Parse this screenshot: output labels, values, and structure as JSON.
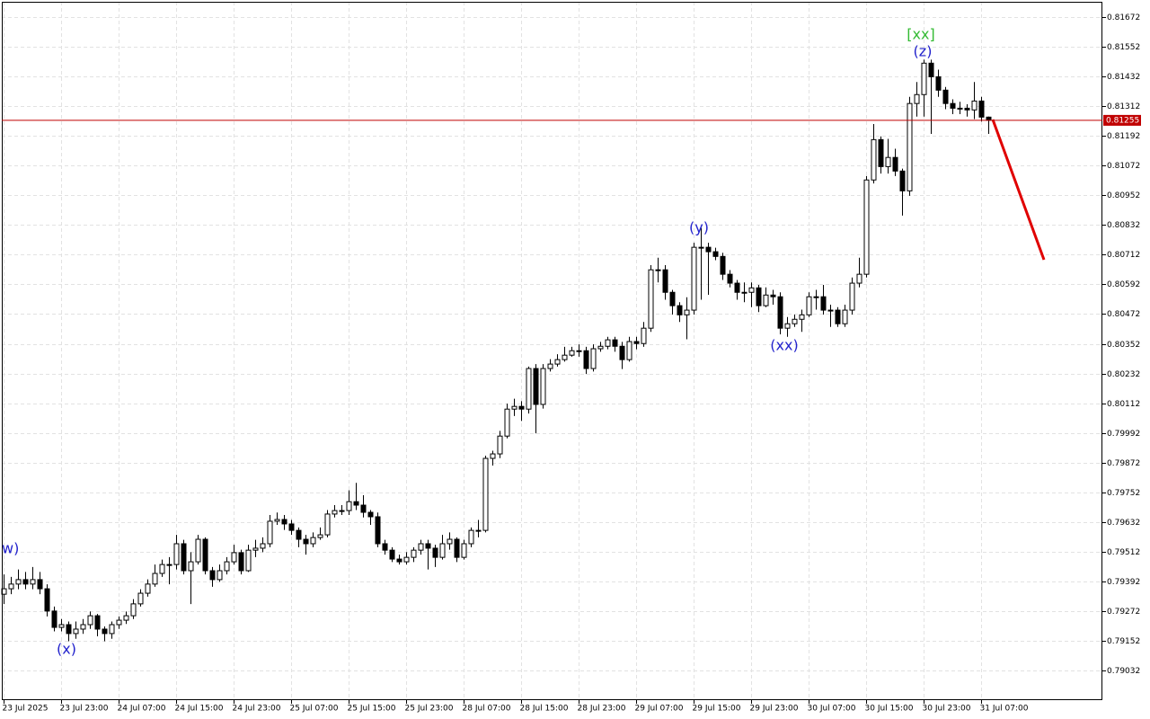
{
  "chart_data": {
    "type": "candlestick",
    "ohlc": [
      [
        0.7934,
        0.7942,
        0.793,
        0.79362
      ],
      [
        0.79362,
        0.7941,
        0.7934,
        0.79381
      ],
      [
        0.79381,
        0.7944,
        0.7936,
        0.79399
      ],
      [
        0.79399,
        0.7943,
        0.7936,
        0.79381
      ],
      [
        0.79381,
        0.7945,
        0.7936,
        0.79399
      ],
      [
        0.79399,
        0.7943,
        0.7934,
        0.79362
      ],
      [
        0.79362,
        0.7938,
        0.7925,
        0.79272
      ],
      [
        0.79272,
        0.7929,
        0.7919,
        0.79206
      ],
      [
        0.79206,
        0.7924,
        0.7919,
        0.79217
      ],
      [
        0.79217,
        0.7923,
        0.7915,
        0.79181
      ],
      [
        0.79181,
        0.7923,
        0.7916,
        0.79199
      ],
      [
        0.79199,
        0.7924,
        0.7918,
        0.79217
      ],
      [
        0.79217,
        0.7927,
        0.792,
        0.79253
      ],
      [
        0.79253,
        0.7926,
        0.7917,
        0.79199
      ],
      [
        0.79199,
        0.7921,
        0.7915,
        0.79181
      ],
      [
        0.79181,
        0.7923,
        0.7916,
        0.79217
      ],
      [
        0.79217,
        0.7925,
        0.792,
        0.79235
      ],
      [
        0.79235,
        0.7927,
        0.7922,
        0.79253
      ],
      [
        0.79253,
        0.7932,
        0.7924,
        0.79301
      ],
      [
        0.79301,
        0.7936,
        0.7929,
        0.79344
      ],
      [
        0.79344,
        0.794,
        0.7933,
        0.79381
      ],
      [
        0.79381,
        0.7946,
        0.7937,
        0.79424
      ],
      [
        0.79424,
        0.7948,
        0.7941,
        0.7946
      ],
      [
        0.7946,
        0.7949,
        0.7938,
        0.7946
      ],
      [
        0.7946,
        0.7958,
        0.7944,
        0.79544
      ],
      [
        0.79544,
        0.7956,
        0.7942,
        0.79435
      ],
      [
        0.79435,
        0.7951,
        0.793,
        0.79471
      ],
      [
        0.79471,
        0.7958,
        0.7946,
        0.79562
      ],
      [
        0.79562,
        0.7957,
        0.7942,
        0.79435
      ],
      [
        0.79435,
        0.7945,
        0.7937,
        0.79399
      ],
      [
        0.79399,
        0.7946,
        0.7939,
        0.79435
      ],
      [
        0.79435,
        0.7949,
        0.7942,
        0.79471
      ],
      [
        0.79471,
        0.7954,
        0.7946,
        0.79508
      ],
      [
        0.79508,
        0.7952,
        0.7942,
        0.79435
      ],
      [
        0.79435,
        0.7954,
        0.7943,
        0.79518
      ],
      [
        0.79518,
        0.7956,
        0.7949,
        0.79526
      ],
      [
        0.79526,
        0.7957,
        0.7951,
        0.79544
      ],
      [
        0.79544,
        0.7966,
        0.7953,
        0.79635
      ],
      [
        0.79635,
        0.7967,
        0.7962,
        0.79642
      ],
      [
        0.79642,
        0.7966,
        0.796,
        0.79624
      ],
      [
        0.79624,
        0.7964,
        0.7958,
        0.79598
      ],
      [
        0.79598,
        0.7961,
        0.7953,
        0.79562
      ],
      [
        0.79562,
        0.7958,
        0.795,
        0.79544
      ],
      [
        0.79544,
        0.7959,
        0.7953,
        0.79569
      ],
      [
        0.79569,
        0.7961,
        0.7956,
        0.7958
      ],
      [
        0.7958,
        0.7968,
        0.7957,
        0.79664
      ],
      [
        0.79664,
        0.797,
        0.7965,
        0.79678
      ],
      [
        0.79678,
        0.797,
        0.7966,
        0.79678
      ],
      [
        0.79678,
        0.7976,
        0.7966,
        0.79714
      ],
      [
        0.79714,
        0.7979,
        0.7968,
        0.797
      ],
      [
        0.797,
        0.7974,
        0.7965,
        0.79671
      ],
      [
        0.79671,
        0.7968,
        0.7962,
        0.79653
      ],
      [
        0.79653,
        0.7967,
        0.7953,
        0.79544
      ],
      [
        0.79544,
        0.7956,
        0.795,
        0.79518
      ],
      [
        0.79518,
        0.7953,
        0.7947,
        0.79482
      ],
      [
        0.79482,
        0.795,
        0.7946,
        0.79471
      ],
      [
        0.79471,
        0.7951,
        0.7946,
        0.79489
      ],
      [
        0.79489,
        0.7953,
        0.7947,
        0.79518
      ],
      [
        0.79518,
        0.7956,
        0.795,
        0.79544
      ],
      [
        0.79544,
        0.7956,
        0.7944,
        0.79526
      ],
      [
        0.79526,
        0.7954,
        0.7945,
        0.79489
      ],
      [
        0.79489,
        0.7958,
        0.7948,
        0.79544
      ],
      [
        0.79544,
        0.7959,
        0.7952,
        0.79562
      ],
      [
        0.79562,
        0.7957,
        0.7947,
        0.79489
      ],
      [
        0.79489,
        0.7956,
        0.7948,
        0.79544
      ],
      [
        0.79544,
        0.7961,
        0.7953,
        0.79598
      ],
      [
        0.79598,
        0.7964,
        0.7957,
        0.79598
      ],
      [
        0.79598,
        0.799,
        0.7959,
        0.79889
      ],
      [
        0.79889,
        0.7992,
        0.7986,
        0.79907
      ],
      [
        0.79907,
        0.8,
        0.7989,
        0.79979
      ],
      [
        0.79979,
        0.8011,
        0.7997,
        0.80088
      ],
      [
        0.80088,
        0.8013,
        0.8006,
        0.80099
      ],
      [
        0.80099,
        0.8012,
        0.8004,
        0.80088
      ],
      [
        0.80088,
        0.8026,
        0.8007,
        0.80252
      ],
      [
        0.80252,
        0.8027,
        0.7999,
        0.80107
      ],
      [
        0.80107,
        0.8027,
        0.8009,
        0.80252
      ],
      [
        0.80252,
        0.8029,
        0.8024,
        0.8027
      ],
      [
        0.8027,
        0.8031,
        0.8026,
        0.80288
      ],
      [
        0.80288,
        0.8034,
        0.8028,
        0.80306
      ],
      [
        0.80306,
        0.8034,
        0.803,
        0.80324
      ],
      [
        0.80324,
        0.8035,
        0.803,
        0.80324
      ],
      [
        0.80324,
        0.8034,
        0.8023,
        0.80252
      ],
      [
        0.80252,
        0.8035,
        0.8024,
        0.80332
      ],
      [
        0.80332,
        0.8036,
        0.8032,
        0.80342
      ],
      [
        0.80342,
        0.8038,
        0.8033,
        0.80368
      ],
      [
        0.80368,
        0.8038,
        0.8032,
        0.80342
      ],
      [
        0.80342,
        0.8036,
        0.8025,
        0.80288
      ],
      [
        0.80288,
        0.8038,
        0.8028,
        0.80361
      ],
      [
        0.80361,
        0.8038,
        0.8033,
        0.80353
      ],
      [
        0.80353,
        0.8044,
        0.8034,
        0.80415
      ],
      [
        0.80415,
        0.8067,
        0.804,
        0.80651
      ],
      [
        0.80651,
        0.807,
        0.806,
        0.80651
      ],
      [
        0.80651,
        0.8067,
        0.8053,
        0.8056
      ],
      [
        0.8056,
        0.8057,
        0.8047,
        0.80506
      ],
      [
        0.80506,
        0.8052,
        0.8044,
        0.80469
      ],
      [
        0.80469,
        0.8054,
        0.8037,
        0.80488
      ],
      [
        0.80488,
        0.8076,
        0.8047,
        0.80742
      ],
      [
        0.80742,
        0.8082,
        0.8053,
        0.80742
      ],
      [
        0.80742,
        0.8076,
        0.8055,
        0.80724
      ],
      [
        0.80724,
        0.8074,
        0.8069,
        0.80705
      ],
      [
        0.80705,
        0.8072,
        0.8061,
        0.80633
      ],
      [
        0.80633,
        0.8065,
        0.8058,
        0.80597
      ],
      [
        0.80597,
        0.8061,
        0.8053,
        0.8056
      ],
      [
        0.8056,
        0.806,
        0.8052,
        0.8056
      ],
      [
        0.8056,
        0.806,
        0.805,
        0.80578
      ],
      [
        0.80578,
        0.8059,
        0.8048,
        0.80506
      ],
      [
        0.80506,
        0.8058,
        0.805,
        0.80549
      ],
      [
        0.80549,
        0.8057,
        0.8051,
        0.80542
      ],
      [
        0.80542,
        0.8056,
        0.8039,
        0.80415
      ],
      [
        0.80415,
        0.8046,
        0.8038,
        0.80433
      ],
      [
        0.80433,
        0.8047,
        0.8042,
        0.80451
      ],
      [
        0.80451,
        0.8049,
        0.804,
        0.80469
      ],
      [
        0.80469,
        0.8056,
        0.8046,
        0.80542
      ],
      [
        0.80542,
        0.8057,
        0.8049,
        0.80542
      ],
      [
        0.80542,
        0.8059,
        0.8047,
        0.80488
      ],
      [
        0.80488,
        0.8051,
        0.8042,
        0.80488
      ],
      [
        0.80488,
        0.805,
        0.8042,
        0.80433
      ],
      [
        0.80433,
        0.8051,
        0.8042,
        0.80488
      ],
      [
        0.80488,
        0.8062,
        0.8047,
        0.80597
      ],
      [
        0.80597,
        0.807,
        0.8058,
        0.80633
      ],
      [
        0.80633,
        0.8103,
        0.8062,
        0.81014
      ],
      [
        0.81014,
        0.8124,
        0.81,
        0.81177
      ],
      [
        0.81177,
        0.8119,
        0.8104,
        0.81068
      ],
      [
        0.81068,
        0.8118,
        0.8104,
        0.81105
      ],
      [
        0.81105,
        0.8114,
        0.8103,
        0.8105
      ],
      [
        0.8105,
        0.8106,
        0.8087,
        0.8097
      ],
      [
        0.8097,
        0.8135,
        0.8095,
        0.81323
      ],
      [
        0.81323,
        0.8141,
        0.8127,
        0.81359
      ],
      [
        0.81359,
        0.815,
        0.8127,
        0.81486
      ],
      [
        0.81486,
        0.815,
        0.812,
        0.81431
      ],
      [
        0.81431,
        0.8146,
        0.8135,
        0.81377
      ],
      [
        0.81377,
        0.8139,
        0.813,
        0.81323
      ],
      [
        0.81323,
        0.8134,
        0.8128,
        0.81304
      ],
      [
        0.81304,
        0.8133,
        0.8128,
        0.81304
      ],
      [
        0.81304,
        0.8132,
        0.8127,
        0.81297
      ],
      [
        0.81297,
        0.8141,
        0.8126,
        0.81333
      ],
      [
        0.81333,
        0.8135,
        0.8125,
        0.81268
      ],
      [
        0.81268,
        0.8127,
        0.812,
        0.81255
      ]
    ],
    "ylim": [
      0.78912,
      0.81734
    ],
    "yticks": [
      0.81672,
      0.81552,
      0.81432,
      0.81312,
      0.81192,
      0.81072,
      0.80952,
      0.80832,
      0.80712,
      0.80592,
      0.80472,
      0.80352,
      0.80232,
      0.80112,
      0.79992,
      0.79872,
      0.79752,
      0.79632,
      0.79512,
      0.79392,
      0.79272,
      0.79152,
      0.79032
    ],
    "xticks": [
      {
        "value": 0,
        "label": "23 Jul 2025"
      },
      {
        "value": 8,
        "label": "23 Jul 23:00"
      },
      {
        "value": 16,
        "label": "24 Jul 07:00"
      },
      {
        "value": 24,
        "label": "24 Jul 15:00"
      },
      {
        "value": 32,
        "label": "24 Jul 23:00"
      },
      {
        "value": 40,
        "label": "25 Jul 07:00"
      },
      {
        "value": 48,
        "label": "25 Jul 15:00"
      },
      {
        "value": 56,
        "label": "25 Jul 23:00"
      },
      {
        "value": 64,
        "label": "28 Jul 07:00"
      },
      {
        "value": 72,
        "label": "28 Jul 15:00"
      },
      {
        "value": 80,
        "label": "28 Jul 23:00"
      },
      {
        "value": 88,
        "label": "29 Jul 07:00"
      },
      {
        "value": 96,
        "label": "29 Jul 15:00"
      },
      {
        "value": 104,
        "label": "29 Jul 23:00"
      },
      {
        "value": 112,
        "label": "30 Jul 07:00"
      },
      {
        "value": 120,
        "label": "30 Jul 15:00"
      },
      {
        "value": 128,
        "label": "30 Jul 23:00"
      },
      {
        "value": 136,
        "label": "31 Jul 07:00"
      }
    ],
    "current_price": 0.81255,
    "current_price_color": "#c00000",
    "grid": true,
    "annotations": [
      {
        "text": "w)",
        "color": "#2222cc"
      },
      {
        "text": "(x)",
        "color": "#2222cc"
      },
      {
        "text": "(y)",
        "color": "#2222cc"
      },
      {
        "text": "(xx)",
        "color": "#2222cc"
      },
      {
        "text": "(z)",
        "color": "#2222cc"
      },
      {
        "text": "[xx]",
        "color": "#33bb33"
      }
    ]
  }
}
